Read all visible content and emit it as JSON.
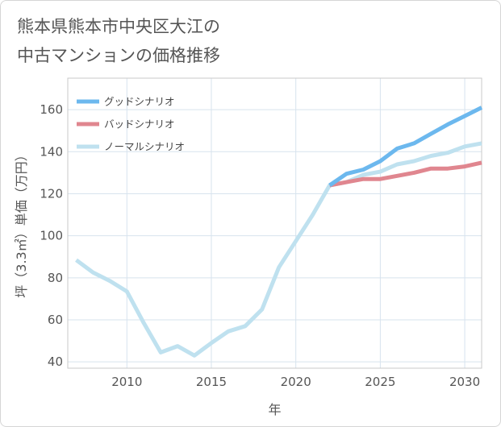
{
  "title_lines": [
    "熊本県熊本市中央区大江の",
    "中古マンションの価格推移"
  ],
  "chart_data": {
    "type": "line",
    "title": "熊本県熊本市中央区大江の中古マンションの価格推移",
    "xlabel": "年",
    "ylabel": "坪（3.3㎡）単価（万円）",
    "xlim": [
      2006.5,
      2031
    ],
    "ylim": [
      37,
      175
    ],
    "x_ticks": [
      2010,
      2015,
      2020,
      2025,
      2030
    ],
    "y_ticks": [
      40,
      60,
      80,
      100,
      120,
      140,
      160
    ],
    "grid": true,
    "legend_position": "top-left",
    "series": [
      {
        "name": "グッドシナリオ",
        "color": "#6cb8ee",
        "x": [
          2022,
          2023,
          2024,
          2025,
          2026,
          2027,
          2028,
          2029,
          2030,
          2031
        ],
        "y": [
          124,
          129.5,
          131.5,
          135.5,
          141.5,
          144,
          148.5,
          153,
          157,
          161
        ]
      },
      {
        "name": "バッドシナリオ",
        "color": "#e0868f",
        "x": [
          2022,
          2023,
          2024,
          2025,
          2026,
          2027,
          2028,
          2029,
          2030,
          2031
        ],
        "y": [
          124,
          125.5,
          127,
          127,
          128.5,
          130,
          132,
          132,
          133,
          134.8
        ]
      },
      {
        "name": "ノーマルシナリオ",
        "color": "#bfe1ef",
        "x": [
          2007,
          2008,
          2009,
          2010,
          2011,
          2012,
          2013,
          2014,
          2015,
          2016,
          2017,
          2018,
          2019,
          2020,
          2021,
          2022,
          2023,
          2024,
          2025,
          2026,
          2027,
          2028,
          2029,
          2030,
          2031
        ],
        "y": [
          88.5,
          82.5,
          78.5,
          73.5,
          58.5,
          44.5,
          47.5,
          43,
          49,
          54.5,
          57,
          65,
          85,
          97.5,
          110,
          124,
          125.5,
          129,
          130.5,
          134,
          135.5,
          138,
          139.5,
          142.5,
          144
        ]
      }
    ]
  }
}
